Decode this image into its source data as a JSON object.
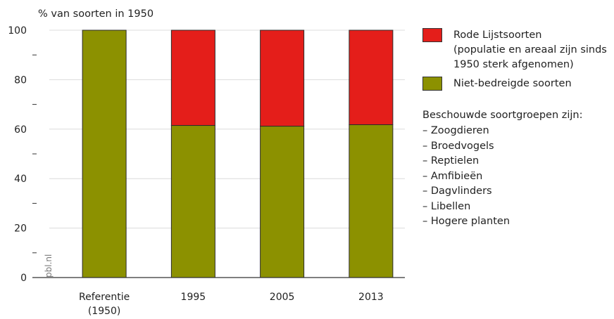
{
  "chart_data": {
    "type": "bar",
    "stacked": true,
    "ylabel": "% van soorten in 1950",
    "ylim": [
      0,
      100
    ],
    "yticks": [
      "0",
      "20",
      "40",
      "60",
      "80",
      "100"
    ],
    "categories": [
      "Referentie\n(1950)",
      "1995",
      "2005",
      "2013"
    ],
    "series": [
      {
        "name": "Niet-bedreigde soorten",
        "color": "#8c9100",
        "values": [
          100,
          61.5,
          61.2,
          61.8
        ]
      },
      {
        "name": "Rode Lijstsoorten\n(populatie en areaal zijn sinds\n1950 sterk afgenomen)",
        "color": "#e41e1a",
        "values": [
          0,
          38.5,
          38.8,
          38.2
        ]
      }
    ],
    "grid": true,
    "source_label": "pbl.nl"
  },
  "legend": {
    "red_label": "Rode Lijstsoorten\n(populatie en areaal zijn sinds\n1950 sterk afgenomen)",
    "green_label": "Niet-bedreigde soorten",
    "red_color": "#e41e1a",
    "green_color": "#8c9100"
  },
  "note": {
    "title": "Beschouwde soortgroepen zijn:",
    "groups": [
      "– Zoogdieren",
      "– Broedvogels",
      "– Reptielen",
      "– Amfibieën",
      "– Dagvlinders",
      "– Libellen",
      "– Hogere planten"
    ]
  }
}
